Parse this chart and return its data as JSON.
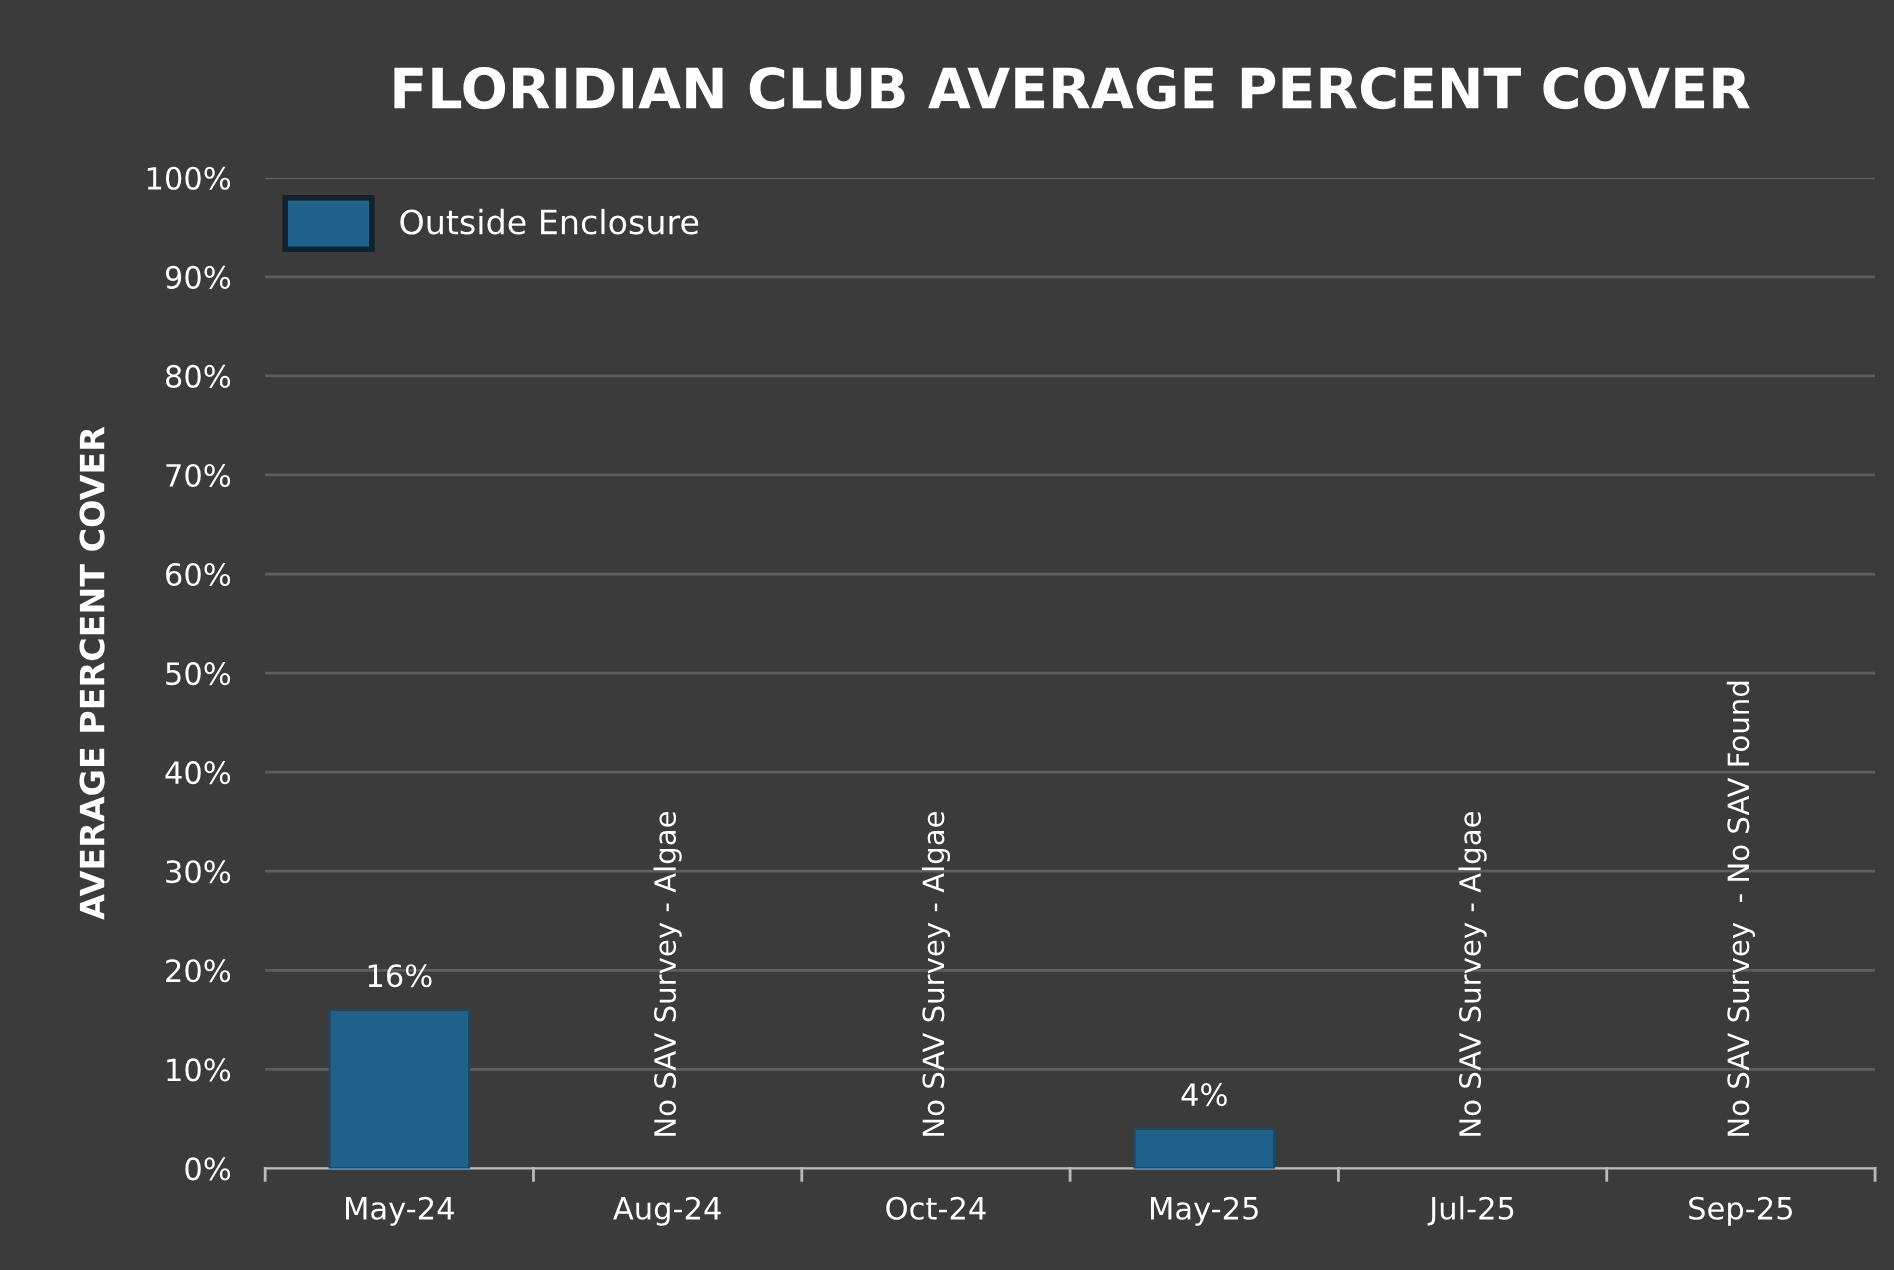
{
  "chart_data": {
    "type": "bar",
    "title": "FLORIDIAN CLUB AVERAGE PERCENT COVER",
    "ylabel": "AVERAGE PERCENT COVER",
    "categories": [
      "May-24",
      "Aug-24",
      "Oct-24",
      "May-25",
      "Jul-25",
      "Sep-25"
    ],
    "series": [
      {
        "name": "Outside Enclosure",
        "color": "#1f6189",
        "values": [
          16,
          null,
          null,
          4,
          null,
          null
        ],
        "value_labels": [
          "16%",
          null,
          null,
          "4%",
          null,
          null
        ]
      }
    ],
    "ylim": [
      0,
      100
    ],
    "yticks": [
      {
        "value": 0,
        "label": "0%"
      },
      {
        "value": 10,
        "label": "10%"
      },
      {
        "value": 20,
        "label": "20%"
      },
      {
        "value": 30,
        "label": "30%"
      },
      {
        "value": 40,
        "label": "40%"
      },
      {
        "value": 50,
        "label": "50%"
      },
      {
        "value": 60,
        "label": "60%"
      },
      {
        "value": 70,
        "label": "70%"
      },
      {
        "value": 80,
        "label": "80%"
      },
      {
        "value": 90,
        "label": "90%"
      },
      {
        "value": 100,
        "label": "100%"
      }
    ],
    "grid": "y",
    "legend": "top left",
    "annotations": [
      "No SAV Survey - Algae",
      "No SAV Survey - Algae",
      "No SAV Survey - Algae",
      "No SAV Survey  - No SAV Found"
    ]
  }
}
